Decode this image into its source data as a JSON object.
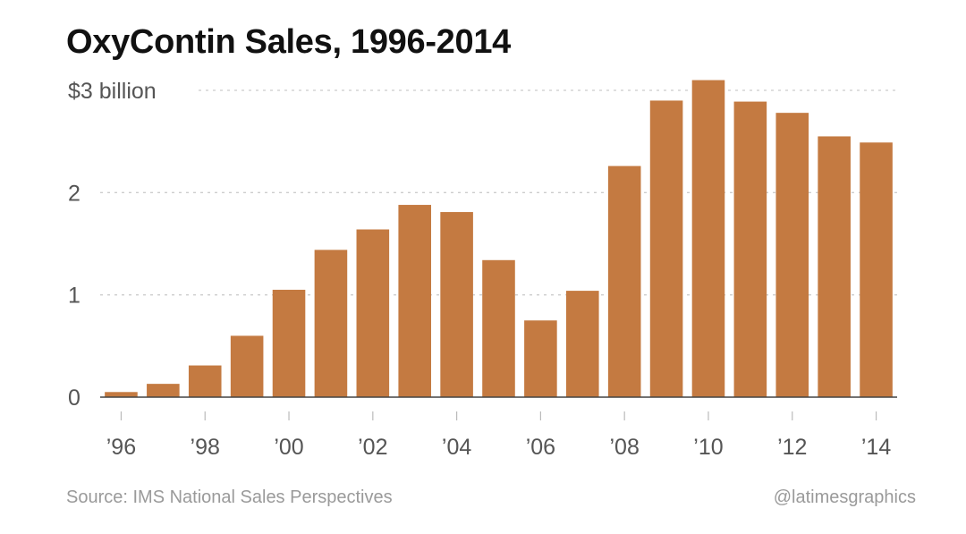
{
  "chart_data": {
    "type": "bar",
    "title": "OxyContin Sales, 1996-2014",
    "categories": [
      "1996",
      "1997",
      "1998",
      "1999",
      "2000",
      "2001",
      "2002",
      "2003",
      "2004",
      "2005",
      "2006",
      "2007",
      "2008",
      "2009",
      "2010",
      "2011",
      "2012",
      "2013",
      "2014"
    ],
    "values": [
      0.05,
      0.13,
      0.31,
      0.6,
      1.05,
      1.44,
      1.64,
      1.88,
      1.81,
      1.34,
      0.75,
      1.04,
      2.26,
      2.9,
      3.1,
      2.89,
      2.78,
      2.55,
      2.49
    ],
    "units": "billion dollars",
    "xlabel": "",
    "ylabel": "",
    "ylim": [
      0,
      3
    ],
    "y_ticks": [
      {
        "value": 0,
        "label": "0"
      },
      {
        "value": 1,
        "label": "1"
      },
      {
        "value": 2,
        "label": "2"
      },
      {
        "value": 3,
        "label": "$3 billion"
      }
    ],
    "x_ticks": [
      {
        "category": "1996",
        "label": "’96"
      },
      {
        "category": "1998",
        "label": "’98"
      },
      {
        "category": "2000",
        "label": "’00"
      },
      {
        "category": "2002",
        "label": "’02"
      },
      {
        "category": "2004",
        "label": "’04"
      },
      {
        "category": "2006",
        "label": "’06"
      },
      {
        "category": "2008",
        "label": "’08"
      },
      {
        "category": "2010",
        "label": "’10"
      },
      {
        "category": "2012",
        "label": "’12"
      },
      {
        "category": "2014",
        "label": "’14"
      }
    ],
    "grid": true,
    "bar_color": "#c47a41",
    "grid_color": "#cccccc",
    "axis_color": "#444444"
  },
  "footer": {
    "source": "Source: IMS National Sales Perspectives",
    "credit": "@latimesgraphics"
  }
}
